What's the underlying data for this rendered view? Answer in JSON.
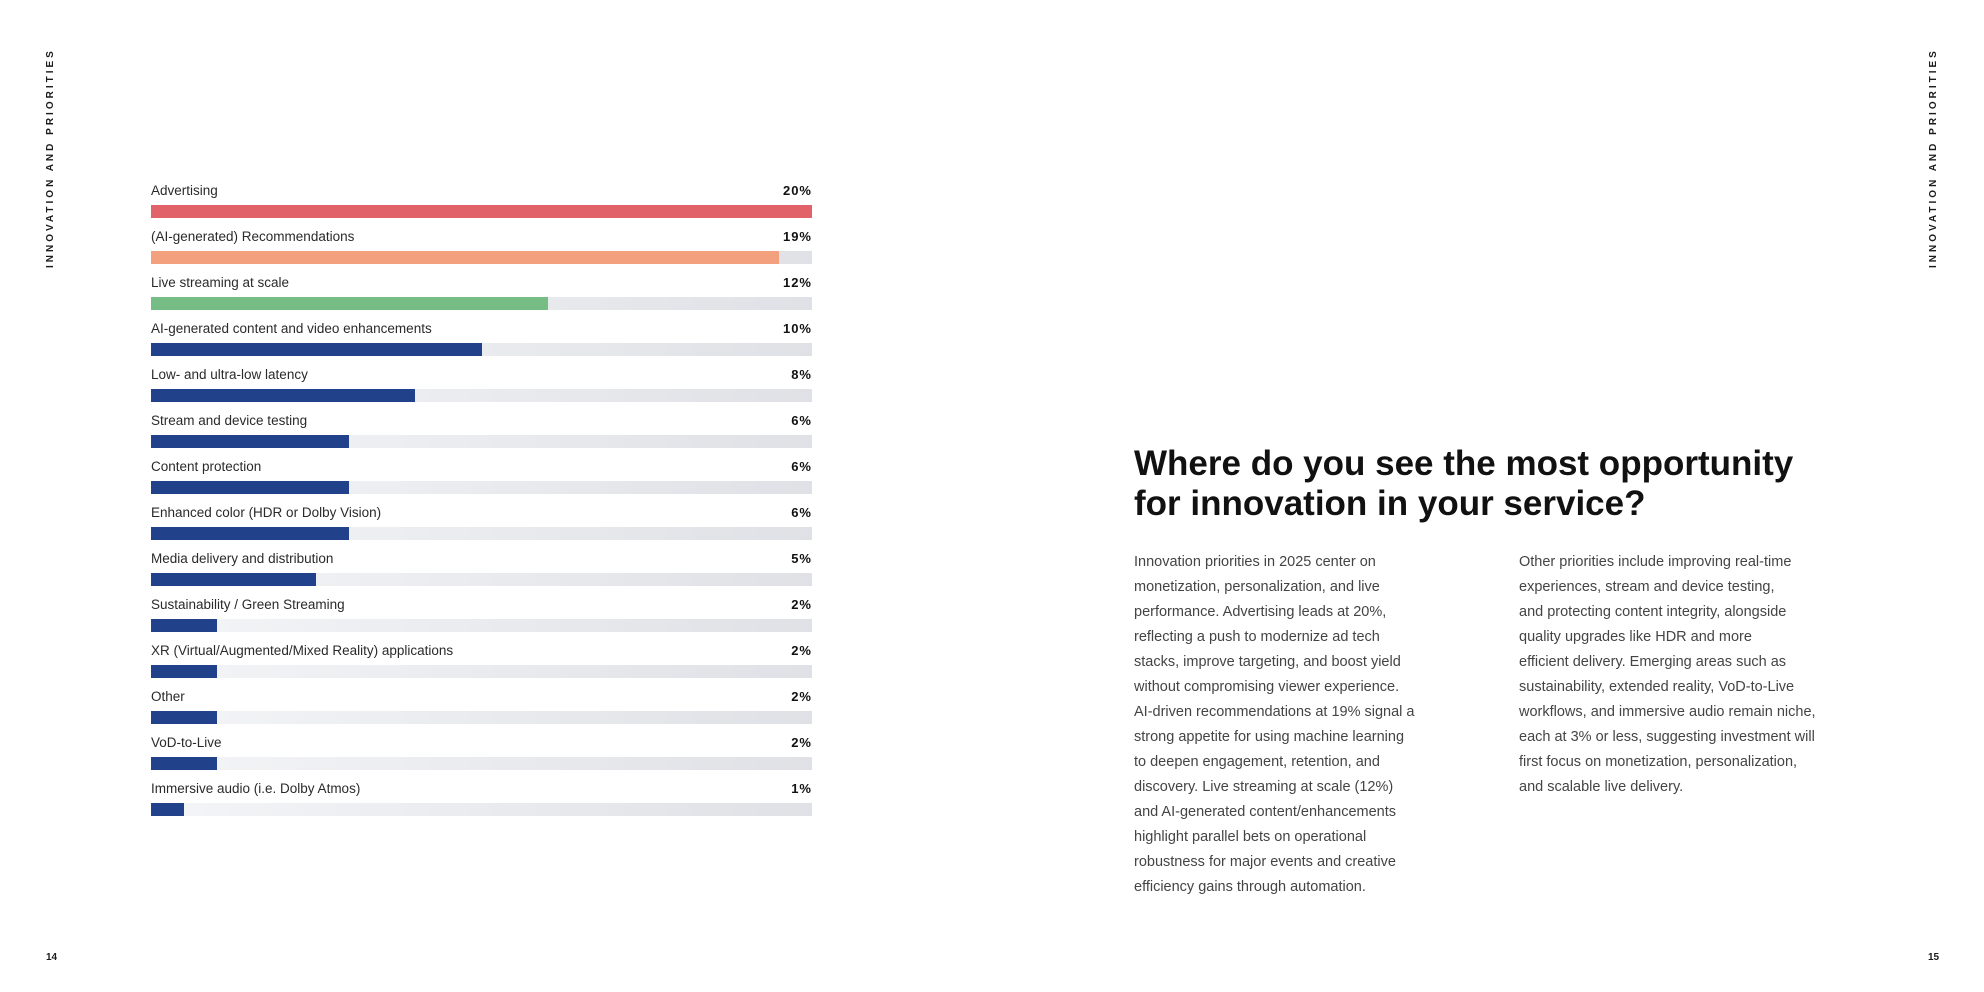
{
  "section_label": "INNOVATION AND PRIORITIES",
  "page_numbers": {
    "left": "14",
    "right": "15"
  },
  "headline": {
    "line1": "Where do you see the most opportunity",
    "line2": "for innovation in your service?"
  },
  "body_left": [
    "Innovation priorities in 2025 center on",
    "monetization, personalization, and live",
    "performance. Advertising leads at 20%,",
    "reflecting a push to modernize ad tech",
    "stacks, improve targeting, and boost yield",
    "without compromising viewer experience.",
    "AI-driven recommendations at 19% signal a",
    "strong appetite for using machine learning",
    "to deepen engagement, retention, and",
    "discovery. Live streaming at scale (12%)",
    "and AI-generated content/enhancements",
    "highlight parallel bets on operational",
    "robustness for major events and creative",
    "efficiency gains through automation."
  ],
  "body_right": [
    "Other priorities include improving real-time",
    "experiences, stream and device testing,",
    "and protecting content integrity, alongside",
    "quality upgrades like HDR and more",
    "efficient delivery. Emerging areas such as",
    "sustainability, extended reality, VoD-to-Live",
    "workflows, and immersive audio remain niche,",
    "each at 3% or less, suggesting investment will",
    "first focus on monetization, personalization,",
    "and scalable live delivery."
  ],
  "chart_data": {
    "type": "bar",
    "orientation": "horizontal",
    "title": "",
    "xlabel": "",
    "ylabel": "",
    "xlim": [
      0,
      20
    ],
    "categories": [
      "Advertising",
      "(AI-generated) Recommendations",
      "Live streaming at scale",
      "AI-generated content and video enhancements",
      "Low- and ultra-low latency",
      "Stream and device testing",
      "Content protection",
      "Enhanced color (HDR or Dolby Vision)",
      "Media delivery and distribution",
      "Sustainability / Green Streaming",
      "XR (Virtual/Augmented/Mixed Reality) applications",
      "Other",
      "VoD-to-Live",
      "Immersive audio (i.e. Dolby Atmos)"
    ],
    "values": [
      20,
      19,
      12,
      10,
      8,
      6,
      6,
      6,
      5,
      2,
      2,
      2,
      2,
      1
    ],
    "value_labels": [
      "20%",
      "19%",
      "12%",
      "10%",
      "8%",
      "6%",
      "6%",
      "6%",
      "5%",
      "2%",
      "2%",
      "2%",
      "2%",
      "1%"
    ],
    "colors": [
      "#e2626a",
      "#f2a07e",
      "#76bc85",
      "#21428a",
      "#21428a",
      "#21428a",
      "#21428a",
      "#21428a",
      "#21428a",
      "#21428a",
      "#21428a",
      "#21428a",
      "#21428a",
      "#21428a"
    ]
  }
}
